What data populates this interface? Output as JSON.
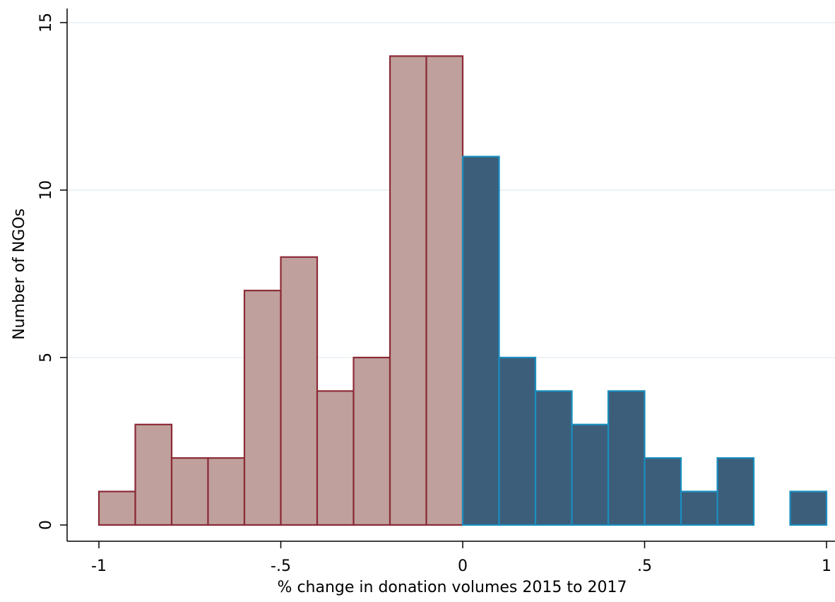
{
  "chart_data": {
    "type": "bar",
    "subtype": "histogram",
    "xlabel": "% change in donation volumes 2015 to 2017",
    "ylabel": "Number of NGOs",
    "xlim": [
      -1,
      1
    ],
    "ylim": [
      0,
      15
    ],
    "x_ticks": [
      {
        "value": -1,
        "label": "-1"
      },
      {
        "value": -0.5,
        "label": "-.5"
      },
      {
        "value": 0,
        "label": "0"
      },
      {
        "value": 0.5,
        "label": ".5"
      },
      {
        "value": 1,
        "label": "1"
      }
    ],
    "y_ticks": [
      {
        "value": 0,
        "label": "0"
      },
      {
        "value": 5,
        "label": "5"
      },
      {
        "value": 10,
        "label": "10"
      },
      {
        "value": 15,
        "label": "15"
      }
    ],
    "grid": true,
    "bin_width": 0.1,
    "series": [
      {
        "bins": [
          {
            "start": -1.0,
            "count": 1
          },
          {
            "start": -0.9,
            "count": 3
          },
          {
            "start": -0.8,
            "count": 2
          },
          {
            "start": -0.7,
            "count": 2
          },
          {
            "start": -0.6,
            "count": 7
          },
          {
            "start": -0.5,
            "count": 8
          },
          {
            "start": -0.4,
            "count": 4
          },
          {
            "start": -0.3,
            "count": 5
          },
          {
            "start": -0.2,
            "count": 14
          },
          {
            "start": -0.1,
            "count": 14
          }
        ],
        "fill": "#bfa09c",
        "stroke": "#8b2a36"
      },
      {
        "bins": [
          {
            "start": 0.0,
            "count": 11
          },
          {
            "start": 0.1,
            "count": 5
          },
          {
            "start": 0.2,
            "count": 4
          },
          {
            "start": 0.3,
            "count": 3
          },
          {
            "start": 0.4,
            "count": 4
          },
          {
            "start": 0.5,
            "count": 2
          },
          {
            "start": 0.6,
            "count": 1
          },
          {
            "start": 0.7,
            "count": 2
          },
          {
            "start": 0.8,
            "count": 0
          },
          {
            "start": 0.9,
            "count": 1
          }
        ],
        "fill": "#3d5e7a",
        "stroke": "#1a8ec0"
      }
    ],
    "colors": {
      "gridline": "#e6edf2",
      "axis": "#000000",
      "background": "#ffffff"
    }
  }
}
